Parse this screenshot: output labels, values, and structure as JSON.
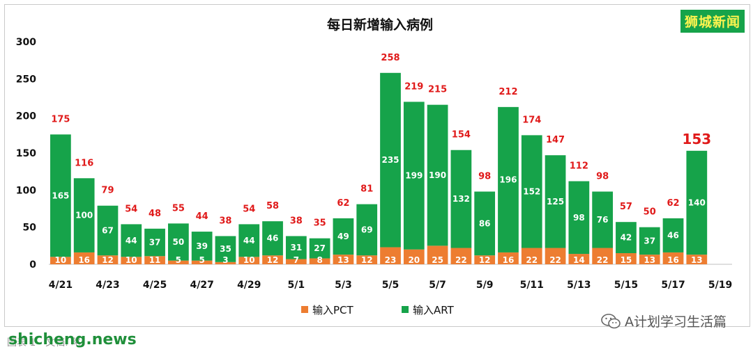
{
  "brand_watermark": "狮城新闻",
  "wechat_watermark": "A计划学习生活篇",
  "site_watermark": "shicheng.news",
  "footer_note": "图表 1 - 文档. 略",
  "chart_data": {
    "type": "bar",
    "stacked": true,
    "title": "每日新增输入病例",
    "categories": [
      "4/21",
      "4/22",
      "4/23",
      "4/24",
      "4/25",
      "4/26",
      "4/27",
      "4/28",
      "4/29",
      "4/30",
      "5/1",
      "5/2",
      "5/3",
      "5/4",
      "5/5",
      "5/6",
      "5/7",
      "5/8",
      "5/9",
      "5/10",
      "5/11",
      "5/12",
      "5/13",
      "5/14",
      "5/15",
      "5/16",
      "5/17",
      "5/18",
      "5/19"
    ],
    "x_tick_labels": [
      "4/21",
      "4/23",
      "4/25",
      "4/27",
      "4/29",
      "5/1",
      "5/3",
      "5/5",
      "5/7",
      "5/9",
      "5/11",
      "5/13",
      "5/15",
      "5/17",
      "5/19"
    ],
    "series": [
      {
        "name": "输入PCT",
        "color": "#ed7d31",
        "values": [
          10,
          16,
          12,
          10,
          11,
          5,
          5,
          3,
          10,
          12,
          7,
          8,
          13,
          12,
          23,
          20,
          25,
          22,
          12,
          16,
          22,
          22,
          14,
          22,
          15,
          13,
          16,
          13,
          null
        ]
      },
      {
        "name": "输入ART",
        "color": "#16a34a",
        "values": [
          165,
          100,
          67,
          44,
          37,
          50,
          39,
          35,
          44,
          46,
          31,
          27,
          49,
          69,
          235,
          199,
          190,
          132,
          86,
          196,
          152,
          125,
          98,
          76,
          42,
          37,
          46,
          140,
          null
        ]
      }
    ],
    "totals": [
      175,
      116,
      79,
      54,
      48,
      55,
      44,
      38,
      54,
      58,
      38,
      35,
      62,
      81,
      258,
      219,
      215,
      154,
      98,
      212,
      174,
      147,
      112,
      98,
      57,
      50,
      62,
      153,
      null
    ],
    "highlight_last_total": true,
    "ylim": [
      0,
      300
    ],
    "yticks": [
      0,
      50,
      100,
      150,
      200,
      250,
      300
    ],
    "grid": false,
    "legend_position": "bottom-center"
  }
}
